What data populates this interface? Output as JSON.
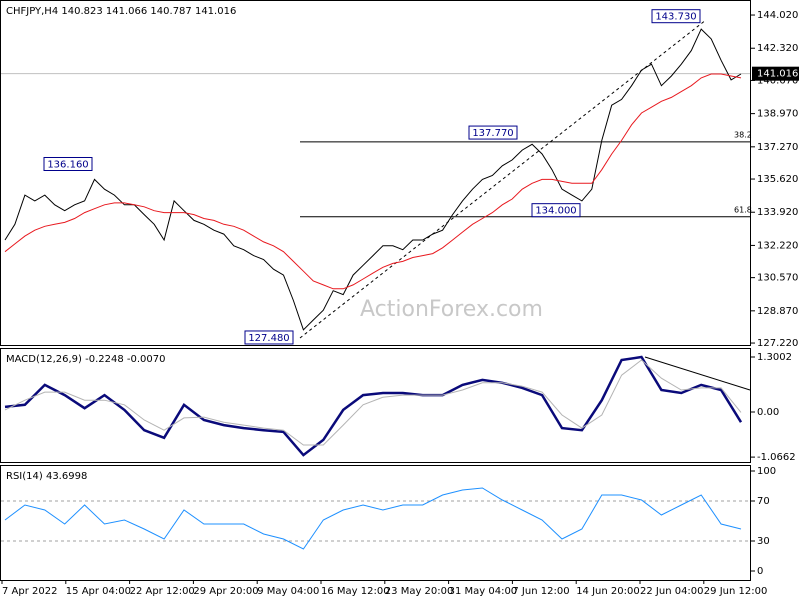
{
  "chart_data": [
    {
      "type": "line",
      "title": "CHFJPY,H4  140.823 141.066 140.787 141.016",
      "watermark": "ActionForex.com",
      "ylim": [
        127.12,
        144.79
      ],
      "yticks": [
        {
          "value": 144.02,
          "label": "144.020"
        },
        {
          "value": 142.32,
          "label": "142.320"
        },
        {
          "value": 140.67,
          "label": "140.670"
        },
        {
          "value": 138.97,
          "label": "138.970"
        },
        {
          "value": 137.27,
          "label": "137.270"
        },
        {
          "value": 135.62,
          "label": "135.620"
        },
        {
          "value": 133.92,
          "label": "133.920"
        },
        {
          "value": 132.22,
          "label": "132.220"
        },
        {
          "value": 130.57,
          "label": "130.570"
        },
        {
          "value": 128.87,
          "label": "128.870"
        },
        {
          "value": 127.22,
          "label": "127.220"
        }
      ],
      "current_price": {
        "value": 141.016,
        "label": "141.016"
      },
      "annotations": [
        {
          "value": 136.16,
          "label": "136.160"
        },
        {
          "value": 127.48,
          "label": "127.480"
        },
        {
          "value": 137.77,
          "label": "137.770"
        },
        {
          "value": 134.0,
          "label": "134.000"
        },
        {
          "value": 143.73,
          "label": "143.730"
        }
      ],
      "fib_levels": [
        38.2,
        61.8
      ],
      "series": [
        {
          "name": "CHFJPY",
          "color": "#000000",
          "values": [
            132.5,
            133.3,
            134.8,
            134.5,
            134.8,
            134.3,
            134.0,
            134.3,
            134.5,
            135.6,
            135.1,
            134.8,
            134.3,
            134.3,
            133.8,
            133.3,
            132.5,
            134.5,
            134.0,
            133.5,
            133.3,
            133.0,
            132.8,
            132.2,
            132.0,
            131.7,
            131.5,
            131.0,
            130.7,
            129.4,
            127.9,
            128.4,
            128.9,
            129.9,
            129.7,
            130.7,
            131.2,
            131.7,
            132.2,
            132.2,
            132.0,
            132.5,
            132.5,
            132.8,
            133.0,
            133.8,
            134.5,
            135.1,
            135.6,
            135.8,
            136.3,
            136.6,
            137.1,
            137.4,
            136.9,
            136.1,
            135.1,
            134.8,
            134.5,
            135.1,
            137.6,
            139.4,
            139.7,
            140.4,
            141.2,
            141.5,
            140.4,
            140.9,
            141.5,
            142.2,
            143.3,
            142.8,
            141.7,
            140.7,
            141.0
          ]
        },
        {
          "name": "MA",
          "color": "#e8191f",
          "values": [
            131.9,
            132.3,
            132.7,
            133.0,
            133.2,
            133.3,
            133.4,
            133.6,
            133.9,
            134.1,
            134.3,
            134.4,
            134.4,
            134.3,
            134.2,
            134.0,
            133.9,
            133.9,
            133.9,
            133.8,
            133.6,
            133.5,
            133.3,
            133.2,
            133.0,
            132.7,
            132.4,
            132.2,
            131.9,
            131.4,
            130.9,
            130.4,
            130.2,
            130.0,
            130.0,
            130.2,
            130.5,
            130.8,
            131.1,
            131.3,
            131.4,
            131.6,
            131.7,
            131.8,
            132.1,
            132.5,
            132.9,
            133.3,
            133.6,
            133.9,
            134.3,
            134.6,
            135.1,
            135.4,
            135.6,
            135.6,
            135.5,
            135.4,
            135.4,
            135.4,
            136.1,
            136.9,
            137.6,
            138.4,
            139.0,
            139.3,
            139.6,
            139.8,
            140.1,
            140.4,
            140.8,
            141.0,
            141.0,
            140.9,
            140.8
          ]
        }
      ],
      "x_labels": [
        "7 Apr 2022",
        "15 Apr 04:00",
        "22 Apr 12:00",
        "29 Apr 20:00",
        "9 May 04:00",
        "16 May 12:00",
        "23 May 20:00",
        "31 May 04:00",
        "7 Jun 12:00",
        "14 Jun 20:00",
        "22 Jun 04:00",
        "29 Jun 12:00"
      ]
    },
    {
      "type": "line",
      "title": "MACD(12,26,9) -0.2248 -0.0070",
      "ylim": [
        -1.182,
        1.513
      ],
      "yticks": [
        1.3002,
        {
          "value": 0,
          "label": "0.00"
        },
        -1.0662
      ],
      "series": [
        {
          "name": "MACD",
          "color": "#0a0a7a",
          "values": [
            0.12,
            0.17,
            0.64,
            0.4,
            0.09,
            0.4,
            0.05,
            -0.43,
            -0.61,
            0.17,
            -0.19,
            -0.31,
            -0.38,
            -0.43,
            -0.47,
            -1.02,
            -0.66,
            0.05,
            0.4,
            0.45,
            0.45,
            0.4,
            0.4,
            0.64,
            0.76,
            0.69,
            0.57,
            0.4,
            -0.38,
            -0.43,
            0.28,
            1.23,
            1.3,
            0.52,
            0.45,
            0.64,
            0.52,
            -0.24
          ]
        },
        {
          "name": "Signal",
          "color": "#b4b4b4",
          "values": [
            0.05,
            0.28,
            0.47,
            0.47,
            0.28,
            0.28,
            0.17,
            -0.19,
            -0.43,
            -0.14,
            -0.12,
            -0.24,
            -0.31,
            -0.38,
            -0.43,
            -0.78,
            -0.78,
            -0.31,
            0.17,
            0.35,
            0.4,
            0.4,
            0.4,
            0.52,
            0.69,
            0.69,
            0.61,
            0.47,
            -0.07,
            -0.38,
            -0.07,
            0.87,
            1.23,
            0.8,
            0.52,
            0.57,
            0.57,
            -0.01
          ]
        }
      ]
    },
    {
      "type": "line",
      "title": "RSI(14) 43.6998",
      "ylim": [
        -9,
        106
      ],
      "yticks": [
        100,
        70,
        30,
        0
      ],
      "series": [
        {
          "name": "RSI",
          "color": "#1e90ff",
          "values": [
            51,
            66,
            61,
            47,
            66,
            47,
            51,
            42,
            32,
            61,
            47,
            47,
            47,
            37,
            32,
            22,
            51,
            61,
            66,
            61,
            66,
            66,
            76,
            81,
            83,
            71,
            61,
            51,
            32,
            42,
            76,
            76,
            71,
            56,
            66,
            76,
            47,
            42
          ]
        }
      ]
    }
  ]
}
